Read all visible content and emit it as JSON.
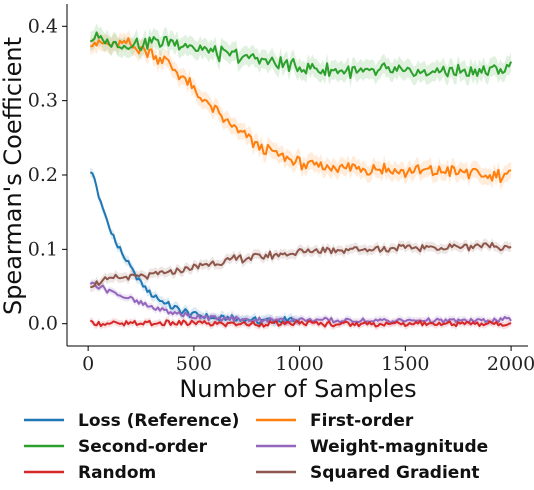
{
  "chart_data": {
    "type": "line",
    "title": "",
    "xlabel": "Number of Samples",
    "ylabel": "Spearman's Coefficient",
    "xlim": [
      -100,
      2080
    ],
    "ylim": [
      -0.03,
      0.43
    ],
    "xticks": [
      0,
      500,
      1000,
      1500,
      2000
    ],
    "xtick_labels": [
      "0",
      "500",
      "1000",
      "1500",
      "2000"
    ],
    "yticks": [
      0.0,
      0.1,
      0.2,
      0.3,
      0.4
    ],
    "ytick_labels": [
      "0.0",
      "0.1",
      "0.2",
      "0.3",
      "0.4"
    ],
    "grid": false,
    "legend_position": "bottom",
    "series": [
      {
        "name": "Loss (Reference)",
        "color": "#1f77b4",
        "x": [
          10,
          30,
          50,
          75,
          100,
          130,
          160,
          200,
          250,
          300,
          350,
          400,
          450,
          500,
          600,
          700,
          800,
          900,
          1000
        ],
        "y": [
          0.205,
          0.195,
          0.17,
          0.15,
          0.13,
          0.11,
          0.095,
          0.075,
          0.055,
          0.04,
          0.03,
          0.022,
          0.016,
          0.012,
          0.008,
          0.006,
          0.005,
          0.004,
          0.004
        ]
      },
      {
        "name": "First-order",
        "color": "#ff7f0e",
        "x": [
          10,
          100,
          200,
          300,
          400,
          500,
          600,
          700,
          800,
          900,
          1000,
          1100,
          1200,
          1300,
          1400,
          1500,
          1600,
          1700,
          1800,
          1900,
          2000
        ],
        "y": [
          0.38,
          0.375,
          0.375,
          0.365,
          0.345,
          0.315,
          0.285,
          0.26,
          0.24,
          0.225,
          0.215,
          0.212,
          0.21,
          0.21,
          0.208,
          0.205,
          0.205,
          0.205,
          0.203,
          0.2,
          0.2
        ]
      },
      {
        "name": "Second-order",
        "color": "#2ca02c",
        "x": [
          10,
          100,
          200,
          300,
          400,
          500,
          600,
          700,
          800,
          900,
          1000,
          1100,
          1200,
          1300,
          1400,
          1500,
          1600,
          1700,
          1800,
          1900,
          2000
        ],
        "y": [
          0.385,
          0.38,
          0.375,
          0.378,
          0.38,
          0.372,
          0.365,
          0.36,
          0.355,
          0.35,
          0.345,
          0.342,
          0.34,
          0.338,
          0.34,
          0.338,
          0.338,
          0.34,
          0.338,
          0.34,
          0.345
        ]
      },
      {
        "name": "Weight-magnitude",
        "color": "#9467bd",
        "x": [
          10,
          100,
          200,
          300,
          400,
          500,
          600,
          700,
          800,
          900,
          1000,
          1200,
          1400,
          1600,
          1800,
          2000
        ],
        "y": [
          0.055,
          0.045,
          0.033,
          0.022,
          0.015,
          0.01,
          0.008,
          0.006,
          0.005,
          0.005,
          0.005,
          0.004,
          0.004,
          0.004,
          0.004,
          0.005
        ]
      },
      {
        "name": "Squared Gradient",
        "color": "#8c564b",
        "x": [
          10,
          100,
          200,
          300,
          400,
          500,
          600,
          700,
          800,
          900,
          1000,
          1100,
          1200,
          1300,
          1400,
          1500,
          1600,
          1700,
          1800,
          1900,
          2000
        ],
        "y": [
          0.052,
          0.06,
          0.062,
          0.065,
          0.07,
          0.076,
          0.082,
          0.087,
          0.09,
          0.093,
          0.097,
          0.099,
          0.1,
          0.1,
          0.101,
          0.102,
          0.102,
          0.103,
          0.104,
          0.105,
          0.104
        ]
      },
      {
        "name": "Random",
        "color": "#d62728",
        "x": [
          10,
          200,
          400,
          600,
          800,
          1000,
          1200,
          1400,
          1600,
          1800,
          2000
        ],
        "y": [
          0.0,
          0.0,
          0.001,
          0.0,
          0.0,
          0.0,
          0.0,
          0.0,
          0.0,
          0.0,
          0.0
        ]
      }
    ],
    "legend_columns": [
      [
        "Loss (Reference)",
        "Second-order",
        "Random"
      ],
      [
        "First-order",
        "Weight-magnitude",
        "Squared Gradient"
      ]
    ]
  }
}
